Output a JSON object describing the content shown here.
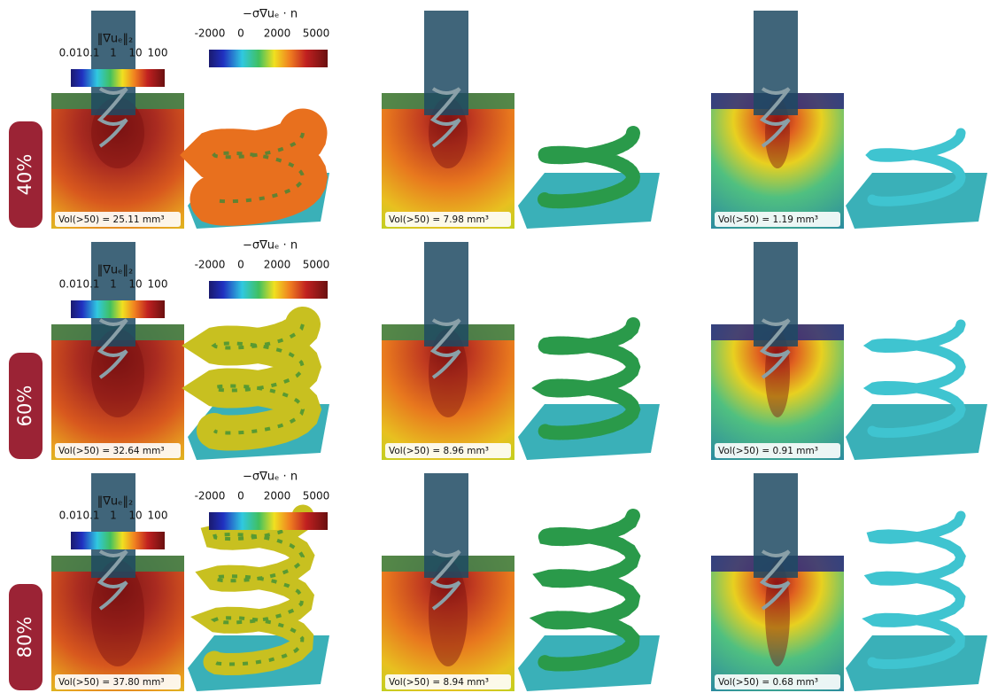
{
  "rows": [
    {
      "label": "40%",
      "colorbar_field": {
        "title": "‖∇uₑ‖₂",
        "ticks": [
          "0.01",
          "0.1",
          "1",
          "10",
          "100"
        ]
      },
      "colorbar_flux": {
        "title": "−σ∇uₑ · n",
        "ticks": [
          "-2000",
          "0",
          "2000",
          "5000"
        ]
      },
      "panels": [
        {
          "volume": "Vol(>50) = 25.11 mm³"
        },
        {
          "volume": "Vol(>50) =  7.98 mm³"
        },
        {
          "volume": "Vol(>50) =  1.19 mm³"
        }
      ]
    },
    {
      "label": "60%",
      "colorbar_field": {
        "title": "‖∇uₑ‖₂",
        "ticks": [
          "0.01",
          "0.1",
          "1",
          "10",
          "100"
        ]
      },
      "colorbar_flux": {
        "title": "−σ∇uₑ · n",
        "ticks": [
          "-2000",
          "0",
          "2000",
          "5000"
        ]
      },
      "panels": [
        {
          "volume": "Vol(>50) = 32.64 mm³"
        },
        {
          "volume": "Vol(>50) =  8.96 mm³"
        },
        {
          "volume": "Vol(>50) =  0.91 mm³"
        }
      ]
    },
    {
      "label": "80%",
      "colorbar_field": {
        "title": "‖∇uₑ‖₂",
        "ticks": [
          "0.01",
          "0.1",
          "1",
          "10",
          "100"
        ]
      },
      "colorbar_flux": {
        "title": "−σ∇uₑ · n",
        "ticks": [
          "-2000",
          "0",
          "2000",
          "5000"
        ]
      },
      "panels": [
        {
          "volume": "Vol(>50) = 37.80 mm³"
        },
        {
          "volume": "Vol(>50) =  8.94 mm³"
        },
        {
          "volume": "Vol(>50) =  0.68 mm³"
        }
      ]
    }
  ]
}
